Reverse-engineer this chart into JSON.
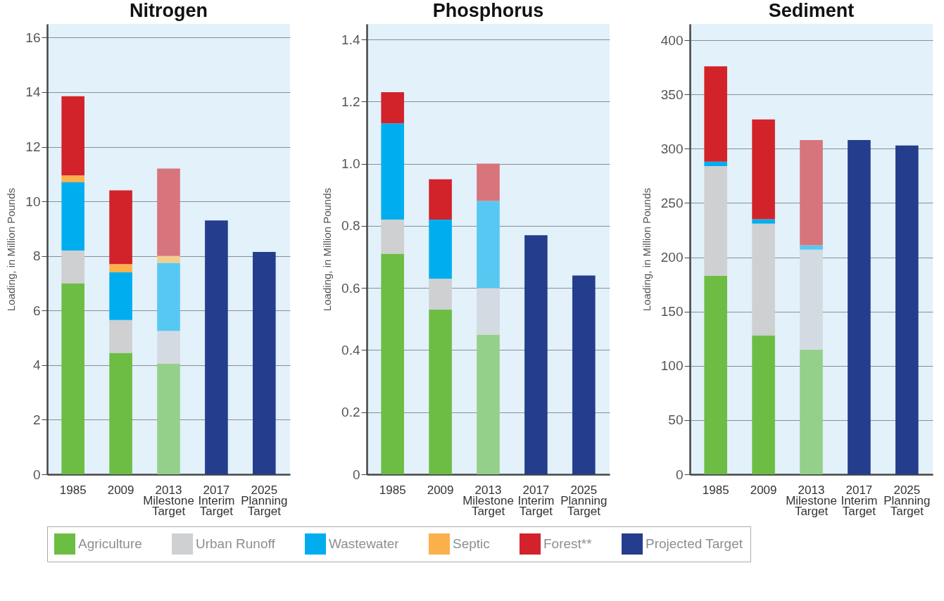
{
  "chart_data": [
    {
      "type": "bar",
      "stacked": true,
      "title": "Nitrogen",
      "ylabel": "Loading, in Million Pounds",
      "categories": [
        "1985",
        "2009",
        "2013 Milestone Target",
        "2017 Interim Target",
        "2025 Planning Target"
      ],
      "ylim": [
        0,
        16.5
      ],
      "yticks": [
        0,
        2,
        4,
        6,
        8,
        10,
        12,
        14,
        16
      ],
      "grid": "y",
      "legend": "bottom",
      "series": [
        {
          "name": "Agriculture",
          "color": "#6dbd45",
          "colors": [
            "#6dbd45",
            "#6dbd45",
            "#95d08a",
            null,
            null
          ],
          "values": [
            7.0,
            4.45,
            4.05,
            null,
            null
          ]
        },
        {
          "name": "Urban Runoff",
          "color": "#cfd0d2",
          "colors": [
            "#cfd0d2",
            "#cfd0d2",
            "#d3dae1",
            null,
            null
          ],
          "values": [
            1.2,
            1.2,
            1.2,
            null,
            null
          ]
        },
        {
          "name": "Wastewater",
          "color": "#00aeef",
          "colors": [
            "#00aeef",
            "#00aeef",
            "#57c8f2",
            null,
            null
          ],
          "values": [
            2.5,
            1.75,
            2.5,
            null,
            null
          ]
        },
        {
          "name": "Septic",
          "color": "#fbb04c",
          "colors": [
            "#fbb04c",
            "#fbb04c",
            "#f2cd8f",
            null,
            null
          ],
          "values": [
            0.25,
            0.3,
            0.25,
            null,
            null
          ]
        },
        {
          "name": "Forest**",
          "color": "#d2232a",
          "colors": [
            "#d2232a",
            "#d2232a",
            "#d8747b",
            null,
            null
          ],
          "values": [
            2.9,
            2.7,
            3.2,
            null,
            null
          ]
        },
        {
          "name": "Projected Target",
          "color": "#243d8c",
          "values": [
            null,
            null,
            null,
            9.3,
            8.15
          ]
        }
      ]
    },
    {
      "type": "bar",
      "stacked": true,
      "title": "Phosphorus",
      "ylabel": "Loading, in Million Pounds",
      "categories": [
        "1985",
        "2009",
        "2013 Milestone Target",
        "2017 Interim Target",
        "2025 Planning Target"
      ],
      "ylim": [
        0,
        1.45
      ],
      "yticks": [
        0,
        0.2,
        0.4,
        0.6,
        0.8,
        {
          "value": 1,
          "label": "1.0"
        },
        1.2,
        1.4
      ],
      "grid": "y",
      "legend": "bottom",
      "series": [
        {
          "name": "Agriculture",
          "color": "#6dbd45",
          "colors": [
            "#6dbd45",
            "#6dbd45",
            "#95d08a",
            null,
            null
          ],
          "values": [
            0.71,
            0.53,
            0.45,
            null,
            null
          ]
        },
        {
          "name": "Urban Runoff",
          "color": "#cfd0d2",
          "colors": [
            "#cfd0d2",
            "#cfd0d2",
            "#d3dae1",
            null,
            null
          ],
          "values": [
            0.11,
            0.1,
            0.15,
            null,
            null
          ]
        },
        {
          "name": "Wastewater",
          "color": "#00aeef",
          "colors": [
            "#00aeef",
            "#00aeef",
            "#57c8f2",
            null,
            null
          ],
          "values": [
            0.31,
            0.19,
            0.28,
            null,
            null
          ]
        },
        {
          "name": "Septic",
          "color": "#fbb04c",
          "values": [
            null,
            null,
            null,
            null,
            null
          ]
        },
        {
          "name": "Forest**",
          "color": "#d2232a",
          "colors": [
            "#d2232a",
            "#d2232a",
            "#d8747b",
            null,
            null
          ],
          "values": [
            0.1,
            0.13,
            0.12,
            null,
            null
          ]
        },
        {
          "name": "Projected Target",
          "color": "#243d8c",
          "values": [
            null,
            null,
            null,
            0.77,
            0.64
          ]
        }
      ]
    },
    {
      "type": "bar",
      "stacked": true,
      "title": "Sediment",
      "ylabel": "Loading, in Million Pounds",
      "categories": [
        "1985",
        "2009",
        "2013 Milestone Target",
        "2017 Interim Target",
        "2025 Planning Target"
      ],
      "ylim": [
        0,
        415
      ],
      "yticks": [
        0,
        50,
        100,
        150,
        200,
        250,
        300,
        350,
        400
      ],
      "grid": "y",
      "legend": "bottom",
      "series": [
        {
          "name": "Agriculture",
          "color": "#6dbd45",
          "colors": [
            "#6dbd45",
            "#6dbd45",
            "#95d08a",
            null,
            null
          ],
          "values": [
            183,
            128,
            115,
            null,
            null
          ]
        },
        {
          "name": "Urban Runoff",
          "color": "#cfd0d2",
          "colors": [
            "#cfd0d2",
            "#cfd0d2",
            "#d3dae1",
            null,
            null
          ],
          "values": [
            101,
            103,
            92,
            null,
            null
          ]
        },
        {
          "name": "Wastewater",
          "color": "#00aeef",
          "colors": [
            "#00aeef",
            "#00aeef",
            "#57c8f2",
            null,
            null
          ],
          "values": [
            4,
            4,
            4,
            null,
            null
          ]
        },
        {
          "name": "Septic",
          "color": "#fbb04c",
          "values": [
            null,
            null,
            null,
            null,
            null
          ]
        },
        {
          "name": "Forest**",
          "color": "#d2232a",
          "colors": [
            "#d2232a",
            "#d2232a",
            "#d8747b",
            null,
            null
          ],
          "values": [
            88,
            92,
            97,
            null,
            null
          ]
        },
        {
          "name": "Projected Target",
          "color": "#243d8c",
          "values": [
            null,
            null,
            null,
            308,
            303
          ]
        }
      ]
    }
  ]
}
